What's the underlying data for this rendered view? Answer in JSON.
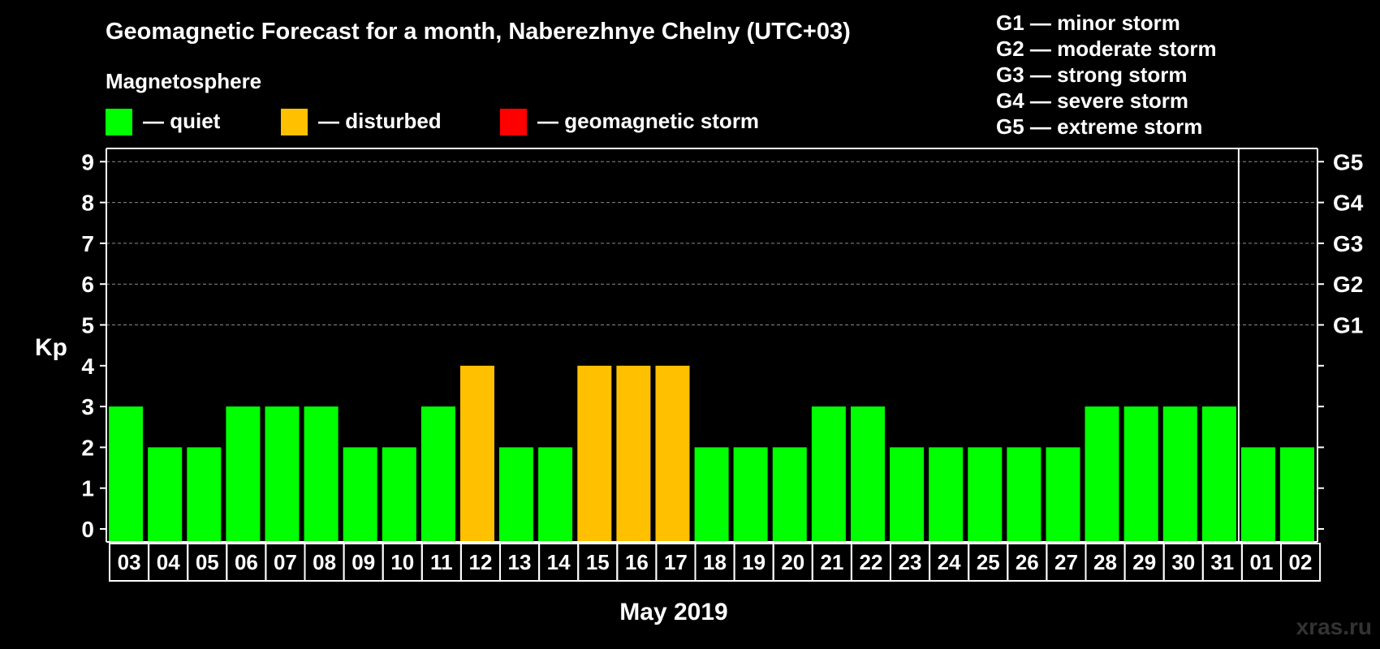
{
  "title": "Geomagnetic Forecast for a month, Naberezhnye Chelny (UTC+03)",
  "magnetosphere_label": "Magnetosphere",
  "legend": [
    {
      "label": "— quiet",
      "color": "#00ff00"
    },
    {
      "label": "— disturbed",
      "color": "#ffc000"
    },
    {
      "label": "— geomagnetic storm",
      "color": "#ff0000"
    }
  ],
  "storm_scale": [
    "G1 — minor storm",
    "G2 — moderate storm",
    "G3 — strong storm",
    "G4 — severe storm",
    "G5 — extreme storm"
  ],
  "credit": "xras.ru",
  "colors": {
    "quiet": "#00ff00",
    "disturbed": "#ffc000",
    "storm": "#ff0000",
    "background": "#000000"
  },
  "chart_data": {
    "type": "bar",
    "title": "Geomagnetic Forecast for a month, Naberezhnye Chelny (UTC+03)",
    "xlabel": "May 2019",
    "ylabel": "Kp",
    "ylim": [
      0,
      9
    ],
    "yticks": [
      "0",
      "1",
      "2",
      "3",
      "4",
      "5",
      "6",
      "7",
      "8",
      "9"
    ],
    "right_axis_labels": [
      {
        "kp": 5,
        "label": "G1"
      },
      {
        "kp": 6,
        "label": "G2"
      },
      {
        "kp": 7,
        "label": "G3"
      },
      {
        "kp": 8,
        "label": "G4"
      },
      {
        "kp": 9,
        "label": "G5"
      }
    ],
    "categories": [
      "03",
      "04",
      "05",
      "06",
      "07",
      "08",
      "09",
      "10",
      "11",
      "12",
      "13",
      "14",
      "15",
      "16",
      "17",
      "18",
      "19",
      "20",
      "21",
      "22",
      "23",
      "24",
      "25",
      "26",
      "27",
      "28",
      "29",
      "30",
      "31",
      "01",
      "02"
    ],
    "values": [
      3,
      2,
      2,
      3,
      3,
      3,
      2,
      2,
      3,
      4,
      2,
      2,
      4,
      4,
      4,
      2,
      2,
      2,
      3,
      3,
      2,
      2,
      2,
      2,
      2,
      3,
      3,
      3,
      3,
      2,
      2
    ],
    "status": [
      "quiet",
      "quiet",
      "quiet",
      "quiet",
      "quiet",
      "quiet",
      "quiet",
      "quiet",
      "quiet",
      "disturbed",
      "quiet",
      "quiet",
      "disturbed",
      "disturbed",
      "disturbed",
      "quiet",
      "quiet",
      "quiet",
      "quiet",
      "quiet",
      "quiet",
      "quiet",
      "quiet",
      "quiet",
      "quiet",
      "quiet",
      "quiet",
      "quiet",
      "quiet",
      "quiet",
      "quiet"
    ],
    "month_break_after": "31",
    "grid": true
  }
}
